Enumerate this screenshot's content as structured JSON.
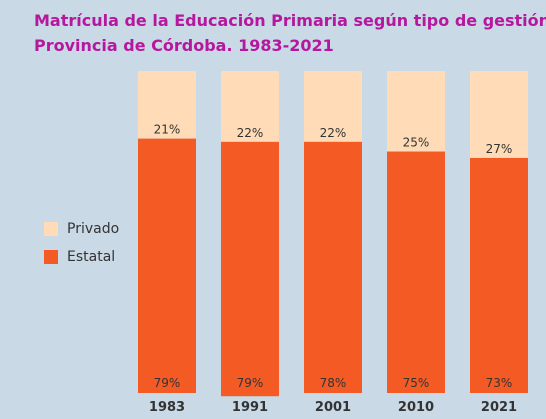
{
  "title_line1": "Matrícula de la Educación Primaria según tipo de gestión.",
  "title_line2": "Provincia de Córdoba. 1983-2021",
  "colors": {
    "privado": "#ffdcb7",
    "estatal": "#f45b24",
    "title": "#b5179e"
  },
  "legend": [
    {
      "label": "Privado",
      "color": "#ffdcb7"
    },
    {
      "label": "Estatal",
      "color": "#f45b24"
    }
  ],
  "chart_data": {
    "type": "bar",
    "stacked": true,
    "percent_stacked": true,
    "categories": [
      "1983",
      "1991",
      "2001",
      "2010",
      "2021"
    ],
    "series": [
      {
        "name": "Estatal",
        "values": [
          79,
          79,
          78,
          75,
          73
        ],
        "labels": [
          "79%",
          "79%",
          "78%",
          "75%",
          "73%"
        ]
      },
      {
        "name": "Privado",
        "values": [
          21,
          22,
          22,
          25,
          27
        ],
        "labels": [
          "21%",
          "22%",
          "22%",
          "25%",
          "27%"
        ]
      }
    ],
    "ylim": [
      0,
      100
    ],
    "legend_position": "left"
  }
}
